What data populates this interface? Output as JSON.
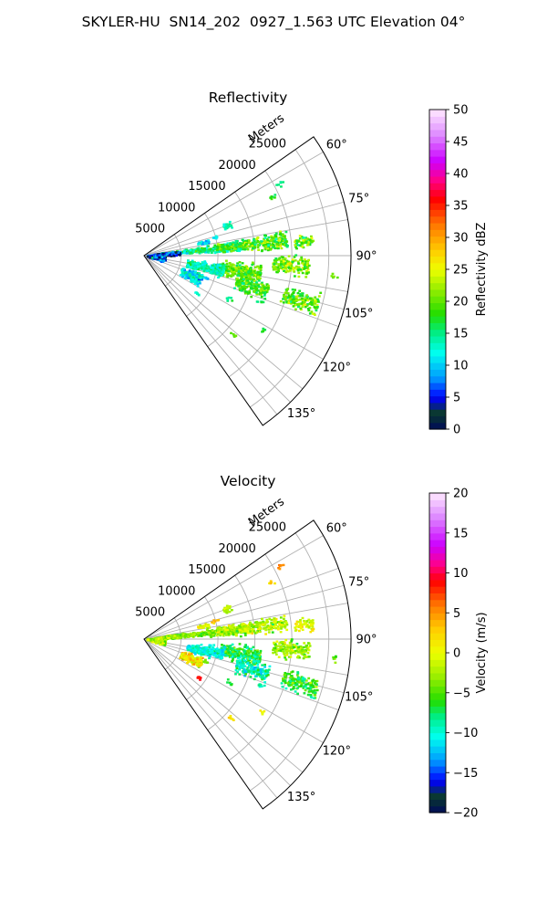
{
  "title": "SKYLER-HU  SN14_202  0927_1.563 UTC Elevation 04°",
  "chart_data": [
    {
      "type": "heatmap",
      "subtype": "polar-sector (PPI)",
      "title": "Reflectivity",
      "radial_axis_label": "Meters",
      "radial_ticks": [
        5000,
        10000,
        15000,
        20000,
        25000
      ],
      "radial_tick_labels": [
        "5000",
        "10000",
        "15000",
        "20000",
        "25000"
      ],
      "rmax": 28000,
      "angle_ticks_deg": [
        60,
        75,
        90,
        105,
        120,
        135
      ],
      "angle_tick_labels": [
        "60°",
        "75°",
        "90°",
        "105°",
        "120°",
        "135°"
      ],
      "theta_range_deg": [
        55,
        145
      ],
      "grid": true,
      "colorbar": {
        "label": "Reflectivity dBZ",
        "min": 0,
        "max": 50,
        "ticks": [
          0,
          5,
          10,
          15,
          20,
          25,
          30,
          35,
          40,
          45,
          50
        ],
        "tick_labels": [
          "0",
          "5",
          "10",
          "15",
          "20",
          "25",
          "30",
          "35",
          "40",
          "45",
          "50"
        ],
        "stops": [
          {
            "v": 0,
            "c": "#000a5a"
          },
          {
            "v": 2.5,
            "c": "#0a3a2a"
          },
          {
            "v": 5,
            "c": "#0000ff"
          },
          {
            "v": 8,
            "c": "#0099ff"
          },
          {
            "v": 12,
            "c": "#00ffee"
          },
          {
            "v": 15,
            "c": "#00ee88"
          },
          {
            "v": 18,
            "c": "#22dd00"
          },
          {
            "v": 22,
            "c": "#99ee00"
          },
          {
            "v": 25,
            "c": "#eeff00"
          },
          {
            "v": 28,
            "c": "#ffcc00"
          },
          {
            "v": 32,
            "c": "#ff7700"
          },
          {
            "v": 36,
            "c": "#ff0000"
          },
          {
            "v": 39,
            "c": "#ff0088"
          },
          {
            "v": 42,
            "c": "#cc00ff"
          },
          {
            "v": 46,
            "c": "#dd88ff"
          },
          {
            "v": 50,
            "c": "#ffe8ff"
          }
        ]
      },
      "echoes": [
        {
          "theta": 85,
          "r1": 2500,
          "r2": 14000,
          "dt": 3,
          "v": 15,
          "s": 2.5
        },
        {
          "theta": 84,
          "r1": 10000,
          "r2": 19500,
          "dt": 3.5,
          "v": 19,
          "s": 3
        },
        {
          "theta": 85,
          "r1": 20500,
          "r2": 23000,
          "dt": 2.5,
          "v": 20,
          "s": 3
        },
        {
          "theta": 87,
          "r1": 1500,
          "r2": 5000,
          "dt": 4,
          "v": 5,
          "s": 4
        },
        {
          "theta": 94,
          "r1": 17500,
          "r2": 22500,
          "dt": 3.5,
          "v": 21,
          "s": 2.5
        },
        {
          "theta": 99,
          "r1": 10500,
          "r2": 16000,
          "dt": 5,
          "v": 20,
          "s": 2.5
        },
        {
          "theta": 101,
          "r1": 6000,
          "r2": 11000,
          "dt": 5,
          "v": 14,
          "s": 2
        },
        {
          "theta": 106,
          "r1": 13000,
          "r2": 17500,
          "dt": 4,
          "v": 19,
          "s": 2.5
        },
        {
          "theta": 106,
          "r1": 19500,
          "r2": 24500,
          "dt": 3.5,
          "v": 20,
          "s": 2.5
        },
        {
          "theta": 113,
          "r1": 5500,
          "r2": 8500,
          "dt": 6,
          "v": 12,
          "s": 3
        },
        {
          "theta": 98,
          "r1": 500,
          "r2": 3000,
          "dt": 10,
          "v": 6,
          "s": 4
        },
        {
          "theta": 78,
          "r1": 7500,
          "r2": 9000,
          "dt": 2,
          "v": 10,
          "s": 3
        },
        {
          "theta": 70,
          "r1": 11500,
          "r2": 12500,
          "dt": 2,
          "v": 14,
          "s": 2
        }
      ]
    },
    {
      "type": "heatmap",
      "subtype": "polar-sector (PPI)",
      "title": "Velocity",
      "radial_axis_label": "Meters",
      "radial_ticks": [
        5000,
        10000,
        15000,
        20000,
        25000
      ],
      "radial_tick_labels": [
        "5000",
        "10000",
        "15000",
        "20000",
        "25000"
      ],
      "rmax": 28000,
      "angle_ticks_deg": [
        60,
        75,
        90,
        105,
        120,
        135
      ],
      "angle_tick_labels": [
        "60°",
        "75°",
        "90°",
        "105°",
        "120°",
        "135°"
      ],
      "theta_range_deg": [
        55,
        145
      ],
      "grid": true,
      "colorbar": {
        "label": "Velocity (m/s)",
        "min": -20,
        "max": 20,
        "ticks": [
          -20,
          -15,
          -10,
          -5,
          0,
          5,
          10,
          15,
          20
        ],
        "tick_labels": [
          "−20",
          "−15",
          "−10",
          "−5",
          "0",
          "5",
          "10",
          "15",
          "20"
        ],
        "stops": [
          {
            "v": -20,
            "c": "#000a5a"
          },
          {
            "v": -18,
            "c": "#0a3a2a"
          },
          {
            "v": -16,
            "c": "#0000ff"
          },
          {
            "v": -13.5,
            "c": "#0099ff"
          },
          {
            "v": -10.5,
            "c": "#00ffee"
          },
          {
            "v": -8,
            "c": "#00ee88"
          },
          {
            "v": -6,
            "c": "#22dd00"
          },
          {
            "v": -3,
            "c": "#99ee00"
          },
          {
            "v": 0,
            "c": "#eeff00"
          },
          {
            "v": 3,
            "c": "#ffcc00"
          },
          {
            "v": 6,
            "c": "#ff7700"
          },
          {
            "v": 9,
            "c": "#ff0000"
          },
          {
            "v": 11,
            "c": "#ff0088"
          },
          {
            "v": 13.5,
            "c": "#cc00ff"
          },
          {
            "v": 17,
            "c": "#dd88ff"
          },
          {
            "v": 20,
            "c": "#ffe8ff"
          }
        ]
      },
      "echoes": [
        {
          "theta": 85,
          "r1": 2500,
          "r2": 14000,
          "dt": 3,
          "v": -4,
          "s": 1.5
        },
        {
          "theta": 84,
          "r1": 10000,
          "r2": 19500,
          "dt": 3.5,
          "v": -2,
          "s": 2
        },
        {
          "theta": 85,
          "r1": 20500,
          "r2": 23000,
          "dt": 2.5,
          "v": 0,
          "s": 1.5
        },
        {
          "theta": 87,
          "r1": 1500,
          "r2": 5000,
          "dt": 4,
          "v": -3,
          "s": 2
        },
        {
          "theta": 94,
          "r1": 17500,
          "r2": 22500,
          "dt": 3.5,
          "v": -3,
          "s": 2
        },
        {
          "theta": 99,
          "r1": 10500,
          "r2": 16000,
          "dt": 5,
          "v": -7,
          "s": 2
        },
        {
          "theta": 101,
          "r1": 6000,
          "r2": 11000,
          "dt": 5,
          "v": -10,
          "s": 1.5
        },
        {
          "theta": 106,
          "r1": 13000,
          "r2": 17500,
          "dt": 4,
          "v": -9,
          "s": 2
        },
        {
          "theta": 106,
          "r1": 19500,
          "r2": 24500,
          "dt": 3.5,
          "v": -6,
          "s": 2
        },
        {
          "theta": 113,
          "r1": 5500,
          "r2": 8500,
          "dt": 6,
          "v": 1,
          "s": 2.5
        },
        {
          "theta": 98,
          "r1": 500,
          "r2": 3000,
          "dt": 10,
          "v": -2,
          "s": 2
        },
        {
          "theta": 78,
          "r1": 7500,
          "r2": 9000,
          "dt": 2,
          "v": 0,
          "s": 2
        },
        {
          "theta": 70,
          "r1": 11500,
          "r2": 12500,
          "dt": 2,
          "v": -3,
          "s": 2
        }
      ]
    }
  ]
}
